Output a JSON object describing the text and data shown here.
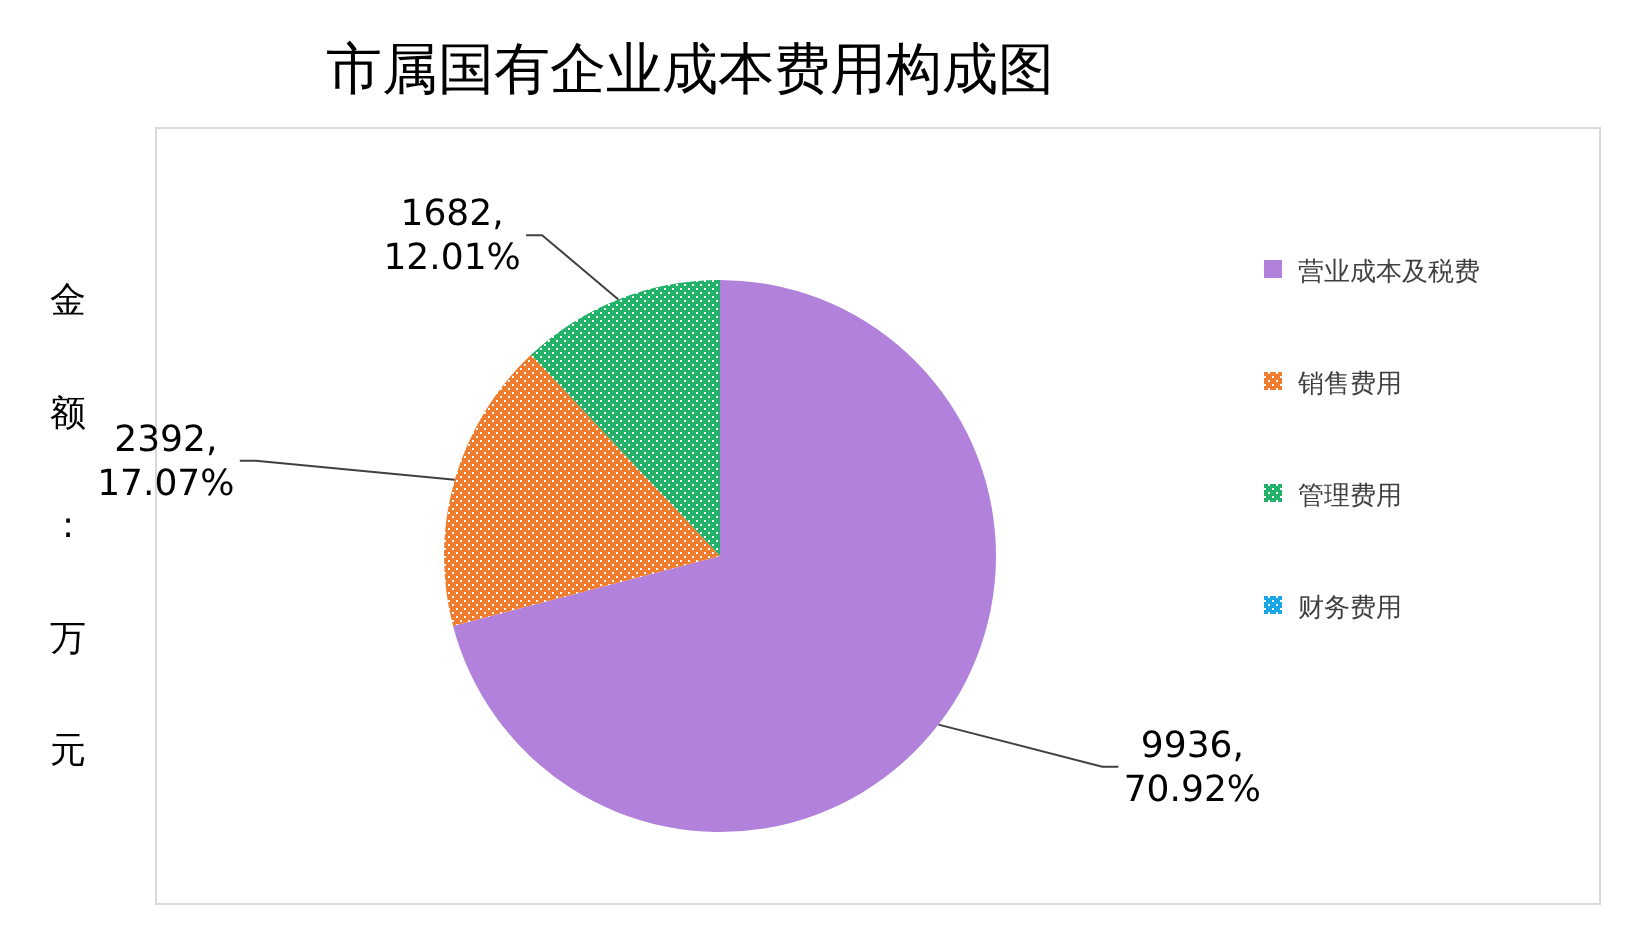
{
  "chart_data": {
    "type": "pie",
    "title": "市属国有企业成本费用构成图",
    "ylabel": "金额:万元",
    "categories": [
      "营业成本及税费",
      "销售费用",
      "管理费用",
      "财务费用"
    ],
    "values": [
      9936,
      2392,
      1682,
      0
    ],
    "colors": [
      "#b281dc",
      "#f07c2e",
      "#22b26a",
      "#1aa7e8"
    ],
    "value_labels": [
      "9936, 70.92%",
      "2392, 17.07%",
      "1682, 12.01%",
      null
    ],
    "legend": "right"
  }
}
